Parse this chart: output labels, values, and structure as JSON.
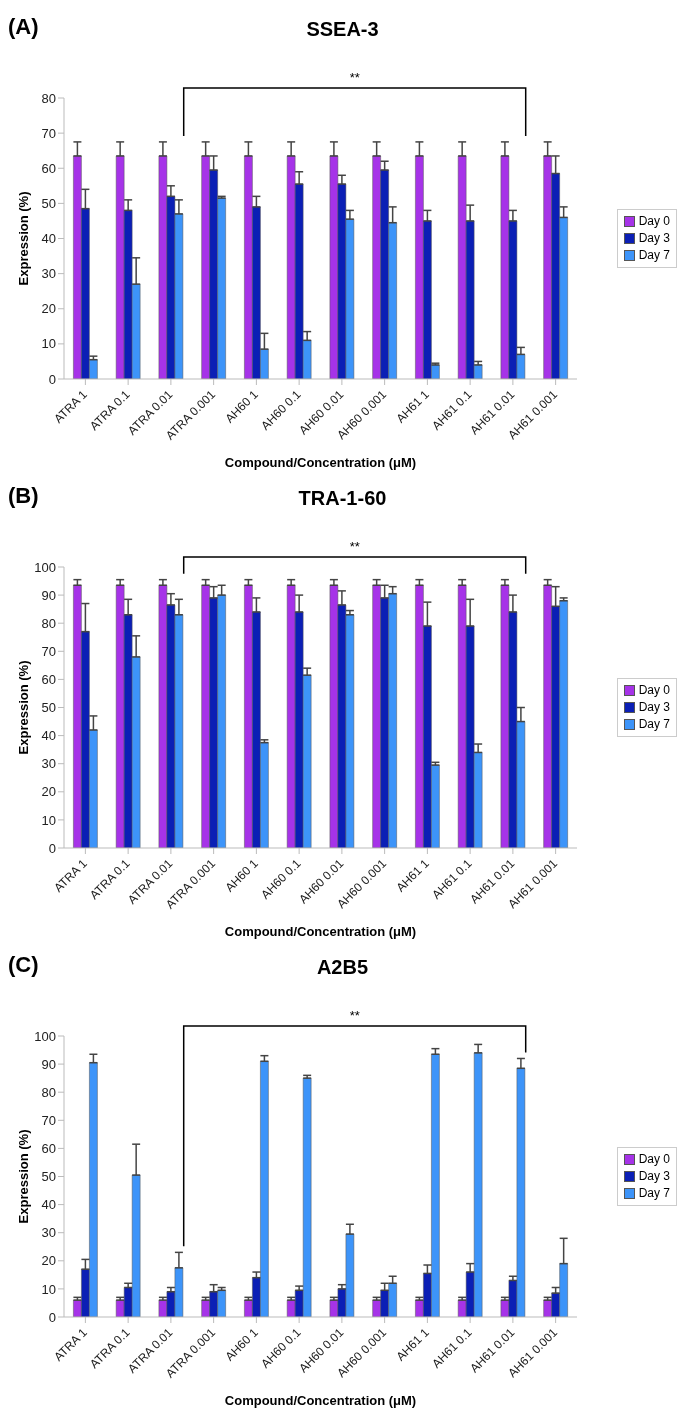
{
  "chart_data": [
    {
      "type": "bar",
      "title": "SSEA-3",
      "xlabel": "Compound/Concentration (μM)",
      "ylabel": "Expression (%)",
      "annotations": [
        "(A)",
        "**"
      ],
      "categories": [
        "ATRA 1",
        "ATRA 0.1",
        "ATRA 0.01",
        "ATRA 0.001",
        "AH60 1",
        "AH60 0.1",
        "AH60 0.01",
        "AH60 0.001",
        "AH61 1",
        "AH61 0.1",
        "AH61 0.01",
        "AH61 0.001"
      ],
      "ylim": [
        0,
        80
      ],
      "yticks": [
        0,
        10,
        20,
        30,
        40,
        50,
        60,
        70,
        80
      ],
      "legend": "right",
      "grid": false,
      "series": [
        {
          "name": "Day 0",
          "color": "#a633e8",
          "values": [
            63.5,
            63.5,
            63.5,
            63.5,
            63.5,
            63.5,
            63.5,
            63.5,
            63.5,
            63.5,
            63.5,
            63.5
          ],
          "errors": [
            [
              63.5,
              67.5
            ],
            [
              63.5,
              67.5
            ],
            [
              63.5,
              67.5
            ],
            [
              63.5,
              67.5
            ],
            [
              63.5,
              67.5
            ],
            [
              63.5,
              67.5
            ],
            [
              63.5,
              67.5
            ],
            [
              63.5,
              67.5
            ],
            [
              63.5,
              67.5
            ],
            [
              63.5,
              67.5
            ],
            [
              63.5,
              67.5
            ],
            [
              63.5,
              67.5
            ]
          ]
        },
        {
          "name": "Day 3",
          "color": "#0b1fb5",
          "values": [
            48.5,
            48,
            52,
            59.5,
            49,
            55.5,
            55.5,
            59.5,
            45,
            45,
            45,
            58.5
          ],
          "errors": [
            [
              48.5,
              54
            ],
            [
              48,
              51
            ],
            [
              52,
              55
            ],
            [
              59.5,
              63.5
            ],
            [
              49,
              52
            ],
            [
              55.5,
              59
            ],
            [
              55.5,
              58
            ],
            [
              59.5,
              62
            ],
            [
              45,
              48
            ],
            [
              45,
              49.5
            ],
            [
              45,
              48
            ],
            [
              58.5,
              63.5
            ]
          ]
        },
        {
          "name": "Day 7",
          "color": "#3d94f9",
          "values": [
            5.5,
            27,
            47,
            51.5,
            8.5,
            11,
            45.5,
            44.5,
            4,
            4,
            7,
            46
          ],
          "errors": [
            [
              5.5,
              6.5
            ],
            [
              27,
              34.5
            ],
            [
              47,
              51
            ],
            [
              51.5,
              52
            ],
            [
              8.5,
              13
            ],
            [
              11,
              13.5
            ],
            [
              45.5,
              48
            ],
            [
              44.5,
              49
            ],
            [
              4,
              4.5
            ],
            [
              4,
              5
            ],
            [
              7,
              9
            ],
            [
              46,
              49
            ]
          ]
        }
      ]
    },
    {
      "type": "bar",
      "title": "TRA-1-60",
      "xlabel": "Compound/Concentration (μM)",
      "ylabel": "Expression (%)",
      "annotations": [
        "(B)",
        "**"
      ],
      "categories": [
        "ATRA 1",
        "ATRA 0.1",
        "ATRA 0.01",
        "ATRA 0.001",
        "AH60 1",
        "AH60 0.1",
        "AH60 0.01",
        "AH60 0.001",
        "AH61 1",
        "AH61 0.1",
        "AH61 0.01",
        "AH61 0.001"
      ],
      "ylim": [
        0,
        100
      ],
      "yticks": [
        0,
        10,
        20,
        30,
        40,
        50,
        60,
        70,
        80,
        90,
        100
      ],
      "legend": "right",
      "grid": false,
      "series": [
        {
          "name": "Day 0",
          "color": "#a633e8",
          "values": [
            93.5,
            93.5,
            93.5,
            93.5,
            93.5,
            93.5,
            93.5,
            93.5,
            93.5,
            93.5,
            93.5,
            93.5
          ],
          "errors": [
            [
              93.5,
              95.5
            ],
            [
              93.5,
              95.5
            ],
            [
              93.5,
              95.5
            ],
            [
              93.5,
              95.5
            ],
            [
              93.5,
              95.5
            ],
            [
              93.5,
              95.5
            ],
            [
              93.5,
              95.5
            ],
            [
              93.5,
              95.5
            ],
            [
              93.5,
              95.5
            ],
            [
              93.5,
              95.5
            ],
            [
              93.5,
              95.5
            ],
            [
              93.5,
              95.5
            ]
          ]
        },
        {
          "name": "Day 3",
          "color": "#0b1fb5",
          "values": [
            77,
            83,
            86.5,
            89,
            84,
            84,
            86.5,
            89,
            79,
            79,
            84,
            86
          ],
          "errors": [
            [
              77,
              87
            ],
            [
              83,
              88.5
            ],
            [
              86.5,
              90.5
            ],
            [
              89,
              93
            ],
            [
              84,
              89
            ],
            [
              84,
              90
            ],
            [
              86.5,
              91.5
            ],
            [
              89,
              93.5
            ],
            [
              79,
              87.5
            ],
            [
              79,
              88.5
            ],
            [
              84,
              90
            ],
            [
              86,
              93
            ]
          ]
        },
        {
          "name": "Day 7",
          "color": "#3d94f9",
          "values": [
            42,
            68,
            83,
            90,
            37.5,
            61.5,
            83,
            90.5,
            29.5,
            34,
            45,
            88
          ],
          "errors": [
            [
              42,
              47
            ],
            [
              68,
              75.5
            ],
            [
              83,
              88.5
            ],
            [
              90,
              93.5
            ],
            [
              37.5,
              38.5
            ],
            [
              61.5,
              64
            ],
            [
              83,
              84.5
            ],
            [
              90.5,
              93
            ],
            [
              29.5,
              30.5
            ],
            [
              34,
              37
            ],
            [
              45,
              50
            ],
            [
              88,
              89
            ]
          ]
        }
      ]
    },
    {
      "type": "bar",
      "title": "A2B5",
      "xlabel": "Compound/Concentration (μM)",
      "ylabel": "Expression (%)",
      "annotations": [
        "(C)",
        "**"
      ],
      "categories": [
        "ATRA 1",
        "ATRA 0.1",
        "ATRA 0.01",
        "ATRA 0.001",
        "AH60 1",
        "AH60 0.1",
        "AH60 0.01",
        "AH60 0.001",
        "AH61 1",
        "AH61 0.1",
        "AH61 0.01",
        "AH61 0.001"
      ],
      "ylim": [
        0,
        100
      ],
      "yticks": [
        0,
        10,
        20,
        30,
        40,
        50,
        60,
        70,
        80,
        90,
        100
      ],
      "legend": "right",
      "grid": false,
      "series": [
        {
          "name": "Day 0",
          "color": "#a633e8",
          "values": [
            6,
            6,
            6,
            6,
            6,
            6,
            6,
            6,
            6,
            6,
            6,
            6
          ],
          "errors": [
            [
              6,
              7
            ],
            [
              6,
              7
            ],
            [
              6,
              7
            ],
            [
              6,
              7
            ],
            [
              6,
              7
            ],
            [
              6,
              7
            ],
            [
              6,
              7
            ],
            [
              6,
              7
            ],
            [
              6,
              7
            ],
            [
              6,
              7
            ],
            [
              6,
              7
            ],
            [
              6,
              7
            ]
          ]
        },
        {
          "name": "Day 3",
          "color": "#0b1fb5",
          "values": [
            17,
            10.5,
            9,
            9,
            14,
            9.5,
            10,
            9.5,
            15.5,
            16,
            13,
            8.5
          ],
          "errors": [
            [
              17,
              20.5
            ],
            [
              10.5,
              12
            ],
            [
              9,
              10.5
            ],
            [
              9,
              11.5
            ],
            [
              14,
              16
            ],
            [
              9.5,
              11
            ],
            [
              10,
              11.5
            ],
            [
              9.5,
              12
            ],
            [
              15.5,
              18.5
            ],
            [
              16,
              19
            ],
            [
              13,
              14.5
            ],
            [
              8.5,
              10.5
            ]
          ]
        },
        {
          "name": "Day 7",
          "color": "#3d94f9",
          "values": [
            90.5,
            50.5,
            17.5,
            9.5,
            91,
            85,
            29.5,
            12,
            93.5,
            94,
            88.5,
            19
          ],
          "errors": [
            [
              90.5,
              93.5
            ],
            [
              50.5,
              61.5
            ],
            [
              17.5,
              23
            ],
            [
              9.5,
              10.5
            ],
            [
              91,
              93
            ],
            [
              85,
              86
            ],
            [
              29.5,
              33
            ],
            [
              12,
              14.5
            ],
            [
              93.5,
              95.5
            ],
            [
              94,
              97
            ],
            [
              88.5,
              92
            ],
            [
              19,
              28
            ]
          ]
        }
      ]
    }
  ]
}
